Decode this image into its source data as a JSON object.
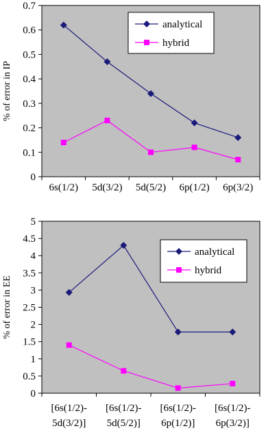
{
  "chart_data": [
    {
      "type": "line",
      "ylabel": "% of error in IP",
      "xlabel": "",
      "categories": [
        "6s(1/2)",
        "5d(3/2)",
        "5d(5/2)",
        "6p(1/2)",
        "6p(3/2)"
      ],
      "ylim": [
        0,
        0.7
      ],
      "yticks": [
        "0",
        "0.1",
        "0.2",
        "0.3",
        "0.4",
        "0.5",
        "0.6",
        "0.7"
      ],
      "grid": false,
      "legend_position": "top-right",
      "series": [
        {
          "name": "analytical",
          "color": "#1a1a7a",
          "marker": "diamond",
          "values": [
            0.62,
            0.47,
            0.34,
            0.22,
            0.16
          ]
        },
        {
          "name": "hybrid",
          "color": "#ff00ff",
          "marker": "square",
          "values": [
            0.14,
            0.23,
            0.1,
            0.12,
            0.07
          ]
        }
      ]
    },
    {
      "type": "line",
      "ylabel": "% of error in EE",
      "xlabel": "",
      "categories": [
        [
          "[6s(1/2)-",
          "5d(3/2)]"
        ],
        [
          "[6s(1/2)-",
          "5d(5/2)]"
        ],
        [
          "[6s(1/2)-",
          "6p(1/2)]"
        ],
        [
          "[6s(1/2)-",
          "6p(3/2)]"
        ]
      ],
      "ylim": [
        0,
        5
      ],
      "yticks": [
        "0",
        "0.5",
        "1",
        "1.5",
        "2",
        "2.5",
        "3",
        "3.5",
        "4",
        "4.5",
        "5"
      ],
      "grid": false,
      "legend_position": "top-right",
      "series": [
        {
          "name": "analytical",
          "color": "#1a1a7a",
          "marker": "diamond",
          "values": [
            2.93,
            4.3,
            1.78,
            1.78
          ]
        },
        {
          "name": "hybrid",
          "color": "#ff00ff",
          "marker": "square",
          "values": [
            1.4,
            0.65,
            0.15,
            0.28
          ]
        }
      ]
    }
  ],
  "colors": {
    "plot_background": "#c0c0c0",
    "frame": "#000000"
  }
}
